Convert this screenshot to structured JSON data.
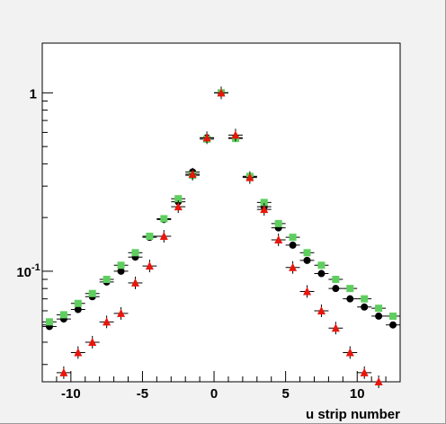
{
  "chart_data": {
    "type": "scatter",
    "title": "",
    "xlabel": "u strip number",
    "ylabel": "",
    "xlim": [
      -12,
      13
    ],
    "ylim": [
      0.024,
      1.9
    ],
    "yscale": "log",
    "grid": false,
    "x_ticks": [
      -10,
      -5,
      0,
      5,
      10
    ],
    "x_tick_labels": [
      "-10",
      "-5",
      "0",
      "5",
      "10"
    ],
    "y_ticks": [
      {
        "value": 1,
        "label": "1",
        "exponent": ""
      },
      {
        "value": 0.1,
        "label": "10",
        "exponent": "-1"
      }
    ],
    "series": [
      {
        "marker": "circle",
        "color": "#000000",
        "x": [
          -11.5,
          -10.5,
          -9.5,
          -8.5,
          -7.5,
          -6.5,
          -5.5,
          -4.5,
          -3.5,
          -2.5,
          -1.5,
          -0.5,
          0.5,
          1.5,
          2.5,
          3.5,
          4.5,
          5.5,
          6.5,
          7.5,
          8.5,
          9.5,
          10.5,
          11.5,
          12.5
        ],
        "y": [
          0.049,
          0.054,
          0.061,
          0.072,
          0.087,
          0.1,
          0.12,
          0.155,
          0.195,
          0.245,
          0.36,
          0.56,
          1.0,
          0.56,
          0.34,
          0.23,
          0.175,
          0.14,
          0.115,
          0.097,
          0.08,
          0.07,
          0.063,
          0.056,
          0.05
        ]
      },
      {
        "marker": "square",
        "color": "#5ecf5e",
        "x": [
          -11.5,
          -10.5,
          -9.5,
          -8.5,
          -7.5,
          -6.5,
          -5.5,
          -4.5,
          -3.5,
          -2.5,
          -1.5,
          -0.5,
          0.5,
          1.5,
          2.5,
          3.5,
          4.5,
          5.5,
          6.5,
          7.5,
          8.5,
          9.5,
          10.5,
          11.5,
          12.5
        ],
        "y": [
          0.052,
          0.057,
          0.066,
          0.075,
          0.09,
          0.108,
          0.127,
          0.157,
          0.197,
          0.255,
          0.345,
          0.55,
          1.0,
          0.555,
          0.34,
          0.243,
          0.185,
          0.155,
          0.127,
          0.108,
          0.09,
          0.08,
          0.07,
          0.062,
          0.056
        ]
      },
      {
        "marker": "triangle",
        "color": "#e8160c",
        "x": [
          -11.5,
          -10.5,
          -9.5,
          -8.5,
          -7.5,
          -6.5,
          -5.5,
          -4.5,
          -3.5,
          -2.5,
          -1.5,
          -0.5,
          0.5,
          1.5,
          2.5,
          3.5,
          4.5,
          5.5,
          6.5,
          7.5,
          8.5,
          9.5,
          10.5,
          11.5,
          12.5
        ],
        "y": [
          null,
          0.027,
          0.035,
          0.04,
          0.052,
          0.058,
          0.086,
          0.107,
          0.157,
          0.23,
          0.35,
          0.56,
          1.0,
          0.58,
          0.335,
          0.222,
          0.15,
          0.105,
          0.077,
          0.06,
          0.048,
          0.035,
          0.027,
          0.024,
          null
        ]
      }
    ]
  }
}
